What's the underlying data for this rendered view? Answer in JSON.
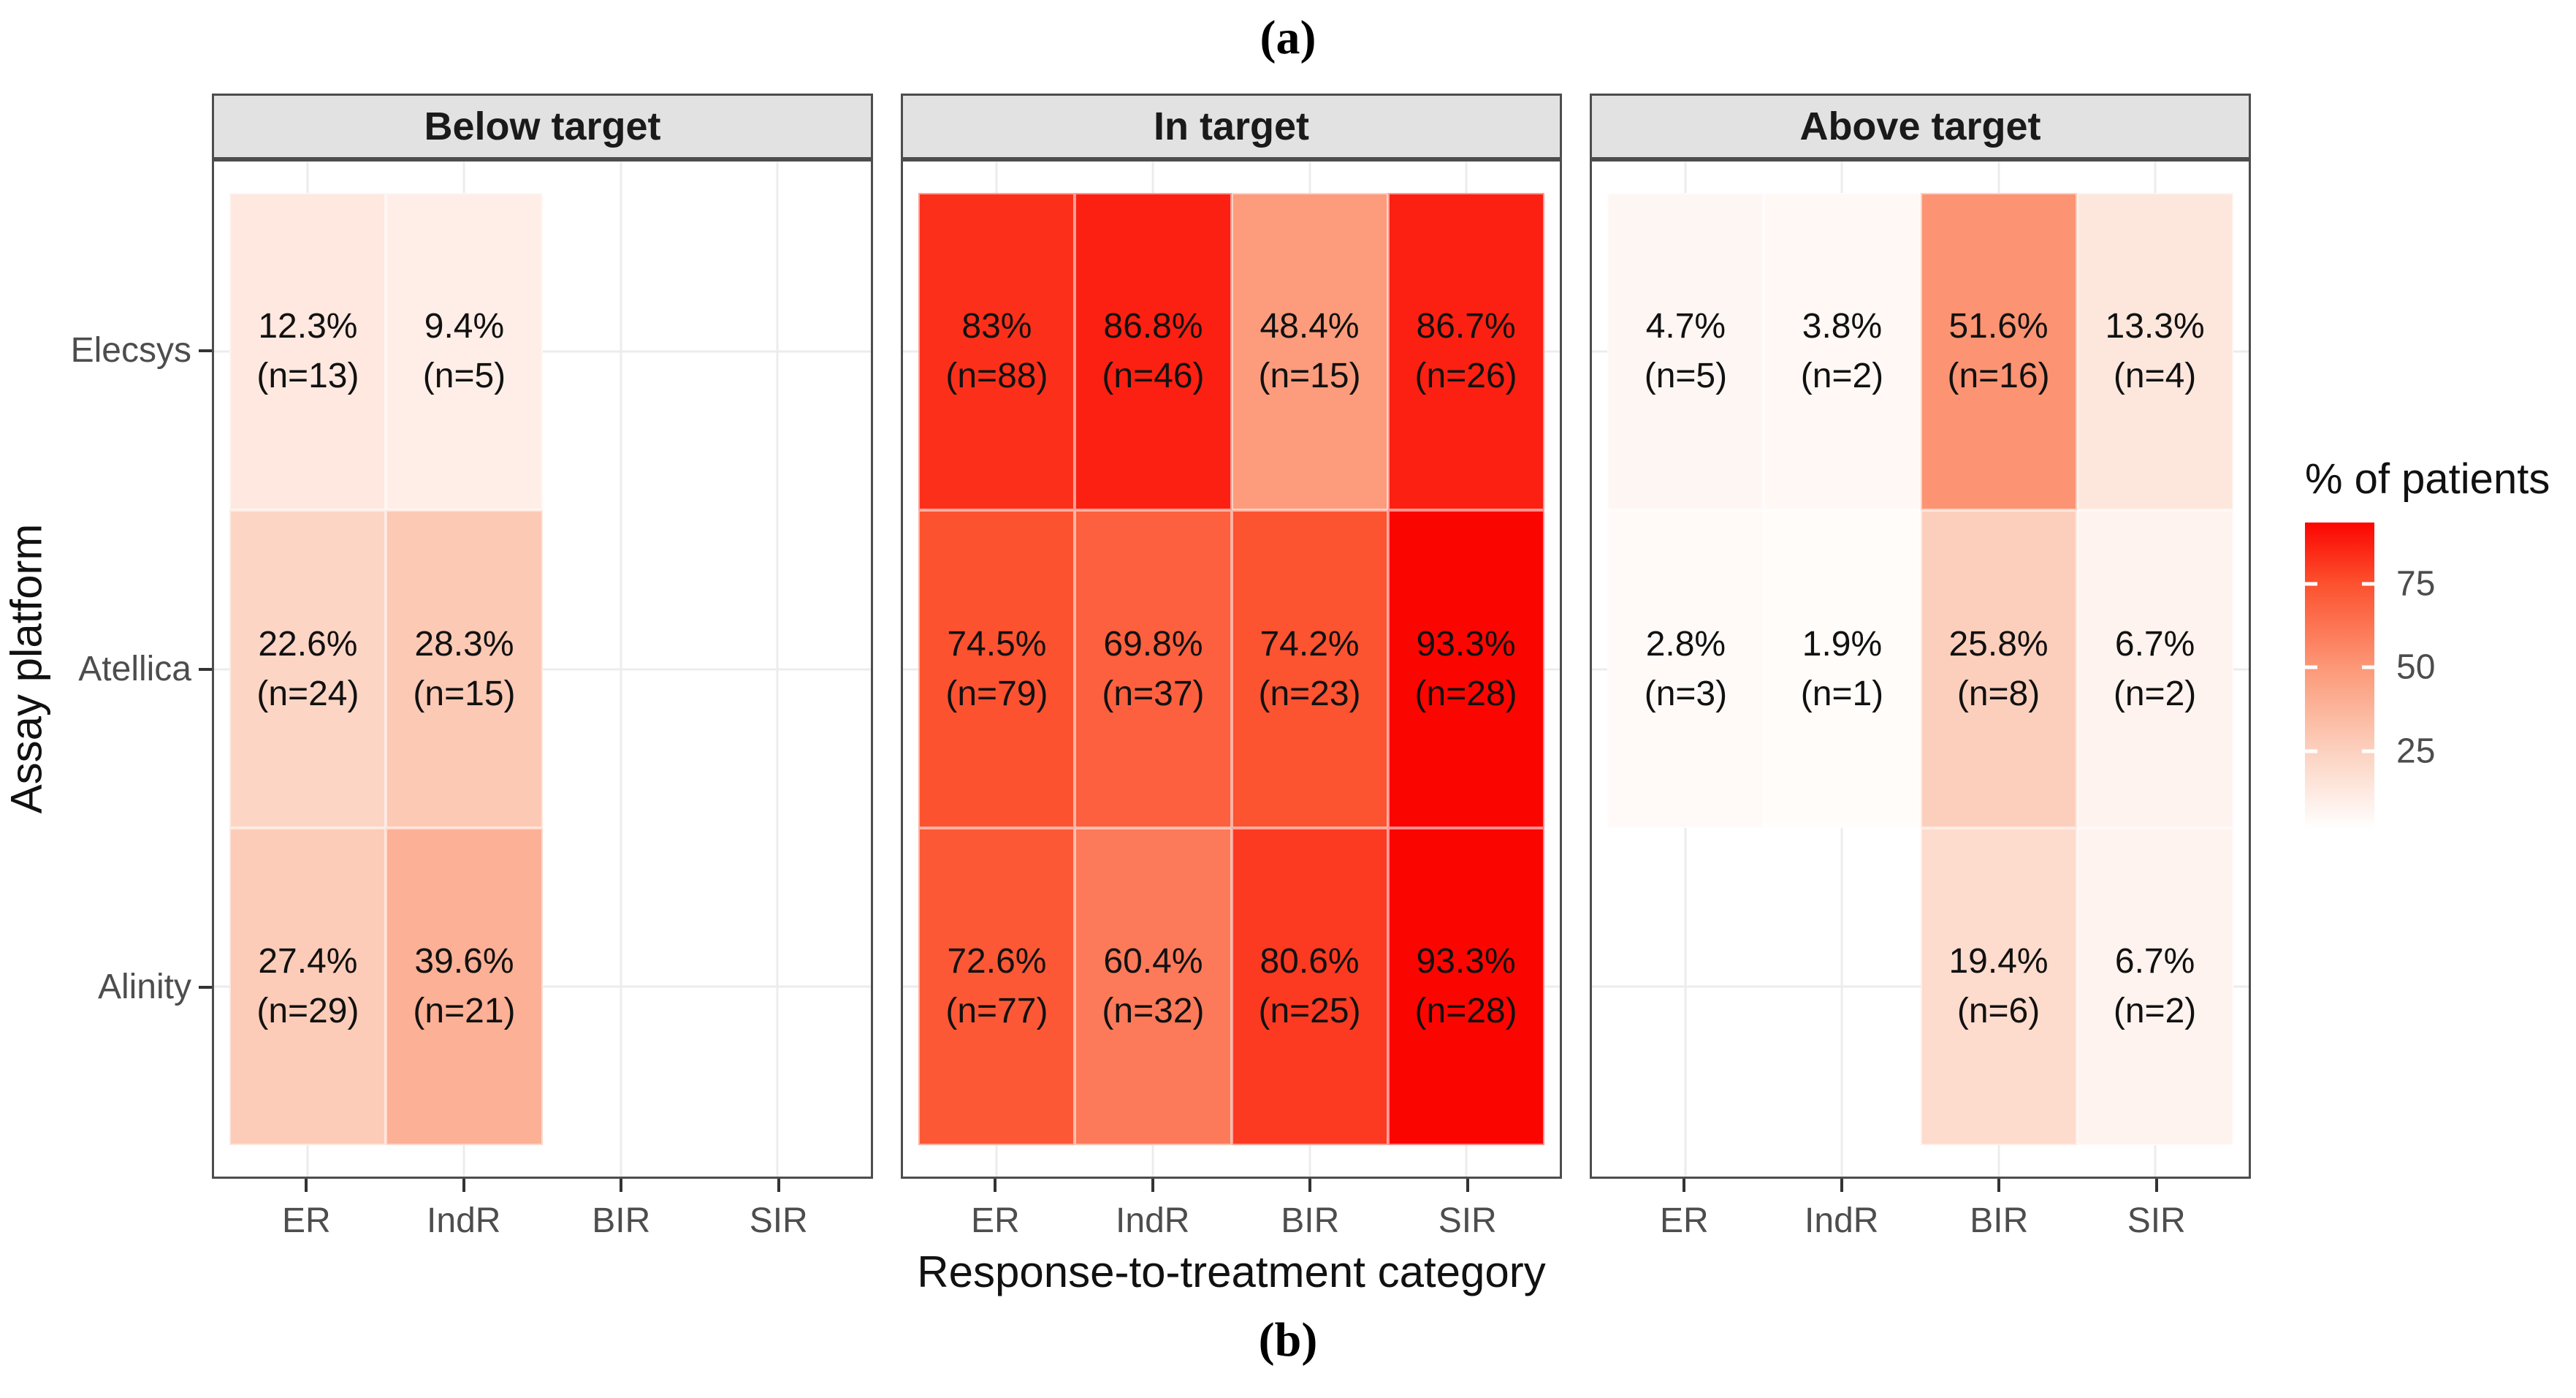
{
  "figure": {
    "top_label": "(a)",
    "bottom_label": "(b)"
  },
  "axes": {
    "x_title": "Response-to-treatment category",
    "y_title": "Assay platform",
    "x_categories": [
      "ER",
      "IndR",
      "BIR",
      "SIR"
    ],
    "y_categories": [
      "Elecsys",
      "Atellica",
      "Alinity"
    ]
  },
  "legend": {
    "title": "% of patients",
    "tick_values": [
      75,
      50,
      25
    ],
    "tick_labels": [
      "75",
      "50",
      "25"
    ],
    "domain": [
      1.9,
      93.3
    ]
  },
  "chart_data": {
    "type": "heatmap",
    "x_categories": [
      "ER",
      "IndR",
      "BIR",
      "SIR"
    ],
    "y_categories": [
      "Elecsys",
      "Atellica",
      "Alinity"
    ],
    "value_unit": "% of patients",
    "facets": [
      {
        "title": "Below target",
        "rows": [
          [
            {
              "value": 12.3,
              "n": 13,
              "pct_label": "12.3%",
              "n_label": "(n=13)"
            },
            {
              "value": 9.4,
              "n": 5,
              "pct_label": "9.4%",
              "n_label": "(n=5)"
            },
            null,
            null
          ],
          [
            {
              "value": 22.6,
              "n": 24,
              "pct_label": "22.6%",
              "n_label": "(n=24)"
            },
            {
              "value": 28.3,
              "n": 15,
              "pct_label": "28.3%",
              "n_label": "(n=15)"
            },
            null,
            null
          ],
          [
            {
              "value": 27.4,
              "n": 29,
              "pct_label": "27.4%",
              "n_label": "(n=29)"
            },
            {
              "value": 39.6,
              "n": 21,
              "pct_label": "39.6%",
              "n_label": "(n=21)"
            },
            null,
            null
          ]
        ]
      },
      {
        "title": "In target",
        "rows": [
          [
            {
              "value": 83,
              "n": 88,
              "pct_label": "83%",
              "n_label": "(n=88)"
            },
            {
              "value": 86.8,
              "n": 46,
              "pct_label": "86.8%",
              "n_label": "(n=46)"
            },
            {
              "value": 48.4,
              "n": 15,
              "pct_label": "48.4%",
              "n_label": "(n=15)"
            },
            {
              "value": 86.7,
              "n": 26,
              "pct_label": "86.7%",
              "n_label": "(n=26)"
            }
          ],
          [
            {
              "value": 74.5,
              "n": 79,
              "pct_label": "74.5%",
              "n_label": "(n=79)"
            },
            {
              "value": 69.8,
              "n": 37,
              "pct_label": "69.8%",
              "n_label": "(n=37)"
            },
            {
              "value": 74.2,
              "n": 23,
              "pct_label": "74.2%",
              "n_label": "(n=23)"
            },
            {
              "value": 93.3,
              "n": 28,
              "pct_label": "93.3%",
              "n_label": "(n=28)"
            }
          ],
          [
            {
              "value": 72.6,
              "n": 77,
              "pct_label": "72.6%",
              "n_label": "(n=77)"
            },
            {
              "value": 60.4,
              "n": 32,
              "pct_label": "60.4%",
              "n_label": "(n=32)"
            },
            {
              "value": 80.6,
              "n": 25,
              "pct_label": "80.6%",
              "n_label": "(n=25)"
            },
            {
              "value": 93.3,
              "n": 28,
              "pct_label": "93.3%",
              "n_label": "(n=28)"
            }
          ]
        ]
      },
      {
        "title": "Above target",
        "rows": [
          [
            {
              "value": 4.7,
              "n": 5,
              "pct_label": "4.7%",
              "n_label": "(n=5)"
            },
            {
              "value": 3.8,
              "n": 2,
              "pct_label": "3.8%",
              "n_label": "(n=2)"
            },
            {
              "value": 51.6,
              "n": 16,
              "pct_label": "51.6%",
              "n_label": "(n=16)"
            },
            {
              "value": 13.3,
              "n": 4,
              "pct_label": "13.3%",
              "n_label": "(n=4)"
            }
          ],
          [
            {
              "value": 2.8,
              "n": 3,
              "pct_label": "2.8%",
              "n_label": "(n=3)"
            },
            {
              "value": 1.9,
              "n": 1,
              "pct_label": "1.9%",
              "n_label": "(n=1)"
            },
            {
              "value": 25.8,
              "n": 8,
              "pct_label": "25.8%",
              "n_label": "(n=8)"
            },
            {
              "value": 6.7,
              "n": 2,
              "pct_label": "6.7%",
              "n_label": "(n=2)"
            }
          ],
          [
            null,
            null,
            {
              "value": 19.4,
              "n": 6,
              "pct_label": "19.4%",
              "n_label": "(n=6)"
            },
            {
              "value": 6.7,
              "n": 2,
              "pct_label": "6.7%",
              "n_label": "(n=2)"
            }
          ]
        ]
      }
    ]
  },
  "style": {
    "panel_border": "#4D4D4D",
    "strip_background": "#E2E2E2",
    "gridline_color": "#ECECEC",
    "tick_mark_color": "#333333",
    "axis_text_color": "#4D4D4D",
    "title_text_color": "#111111",
    "cell_text_color": "#111111",
    "gradient_stops": [
      {
        "value": 0,
        "color": "#FFFFFF"
      },
      {
        "value": 25,
        "color": "#FCD1BF"
      },
      {
        "value": 50,
        "color": "#FC9877"
      },
      {
        "value": 75,
        "color": "#FC512F"
      },
      {
        "value": 93.3,
        "color": "#FB0500"
      }
    ]
  }
}
